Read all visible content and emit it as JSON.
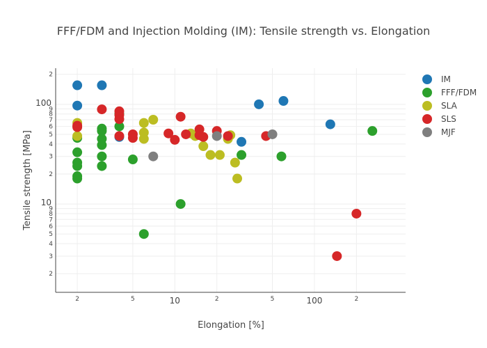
{
  "chart_data": {
    "type": "scatter",
    "title": "FFF/FDM and Injection Molding (IM): Tensile strength vs. Elongation",
    "xlabel": "Elongation [%]",
    "ylabel": "Tensile strength [MPa]",
    "xscale": "log",
    "yscale": "log",
    "xlim": [
      1.4,
      450
    ],
    "ylim": [
      1.3,
      230
    ],
    "grid": true,
    "legend_position": "top-right",
    "x_ticks": [
      {
        "value": 2,
        "label": "2",
        "major": false
      },
      {
        "value": 5,
        "label": "5",
        "major": false
      },
      {
        "value": 10,
        "label": "10",
        "major": true
      },
      {
        "value": 20,
        "label": "2",
        "major": false
      },
      {
        "value": 50,
        "label": "5",
        "major": false
      },
      {
        "value": 100,
        "label": "100",
        "major": true
      },
      {
        "value": 200,
        "label": "2",
        "major": false
      }
    ],
    "x_grid": [
      2,
      5,
      10,
      20,
      50,
      100,
      200
    ],
    "y_ticks": [
      {
        "value": 2,
        "label": "2",
        "major": false
      },
      {
        "value": 3,
        "label": "3",
        "major": false
      },
      {
        "value": 4,
        "label": "4",
        "major": false
      },
      {
        "value": 5,
        "label": "5",
        "major": false
      },
      {
        "value": 6,
        "label": "6",
        "major": false
      },
      {
        "value": 7,
        "label": "7",
        "major": false
      },
      {
        "value": 8,
        "label": "8",
        "major": false
      },
      {
        "value": 9,
        "label": "9",
        "major": false
      },
      {
        "value": 10,
        "label": "10",
        "major": true
      },
      {
        "value": 20,
        "label": "2",
        "major": false
      },
      {
        "value": 30,
        "label": "3",
        "major": false
      },
      {
        "value": 40,
        "label": "4",
        "major": false
      },
      {
        "value": 50,
        "label": "5",
        "major": false
      },
      {
        "value": 60,
        "label": "6",
        "major": false
      },
      {
        "value": 70,
        "label": "7",
        "major": false
      },
      {
        "value": 80,
        "label": "8",
        "major": false
      },
      {
        "value": 90,
        "label": "9",
        "major": false
      },
      {
        "value": 100,
        "label": "100",
        "major": true
      },
      {
        "value": 200,
        "label": "2",
        "major": false
      }
    ],
    "series": [
      {
        "name": "IM",
        "color": "#1f77b4",
        "points": [
          [
            2,
            155
          ],
          [
            3,
            155
          ],
          [
            2,
            97
          ],
          [
            4,
            47
          ],
          [
            30,
            42
          ],
          [
            40,
            100
          ],
          [
            60,
            108
          ],
          [
            130,
            63
          ]
        ]
      },
      {
        "name": "FFF/FDM",
        "color": "#2ca02c",
        "points": [
          [
            2,
            46
          ],
          [
            2,
            33
          ],
          [
            2,
            26
          ],
          [
            2,
            24
          ],
          [
            2,
            19
          ],
          [
            2,
            18
          ],
          [
            3,
            57
          ],
          [
            3,
            54
          ],
          [
            3,
            45
          ],
          [
            3,
            39
          ],
          [
            3,
            30
          ],
          [
            3,
            24
          ],
          [
            4,
            80
          ],
          [
            4,
            60
          ],
          [
            5,
            28
          ],
          [
            6,
            5
          ],
          [
            11,
            10
          ],
          [
            30,
            31
          ],
          [
            58,
            30
          ],
          [
            260,
            54
          ]
        ]
      },
      {
        "name": "SLA",
        "color": "#bcbd22",
        "points": [
          [
            2,
            65
          ],
          [
            2,
            48
          ],
          [
            6,
            65
          ],
          [
            7,
            70
          ],
          [
            6,
            52
          ],
          [
            6,
            45
          ],
          [
            13,
            51
          ],
          [
            14,
            48
          ],
          [
            16,
            38
          ],
          [
            18,
            31
          ],
          [
            21,
            31
          ],
          [
            24,
            45
          ],
          [
            25,
            49
          ],
          [
            27,
            26
          ],
          [
            28,
            18
          ]
        ]
      },
      {
        "name": "SLS",
        "color": "#d62728",
        "points": [
          [
            2,
            61
          ],
          [
            2,
            59
          ],
          [
            3,
            89
          ],
          [
            4,
            85
          ],
          [
            4,
            78
          ],
          [
            4,
            71
          ],
          [
            4,
            48
          ],
          [
            5,
            50
          ],
          [
            5,
            46
          ],
          [
            9,
            51
          ],
          [
            10,
            44
          ],
          [
            11,
            75
          ],
          [
            12,
            50
          ],
          [
            15,
            56
          ],
          [
            15,
            49
          ],
          [
            16,
            47
          ],
          [
            20,
            54
          ],
          [
            24,
            48
          ],
          [
            45,
            48
          ],
          [
            145,
            3
          ],
          [
            200,
            8
          ]
        ]
      },
      {
        "name": "MJF",
        "color": "#7f7f7f",
        "points": [
          [
            7,
            30
          ],
          [
            20,
            48
          ],
          [
            50,
            50
          ]
        ]
      }
    ]
  }
}
